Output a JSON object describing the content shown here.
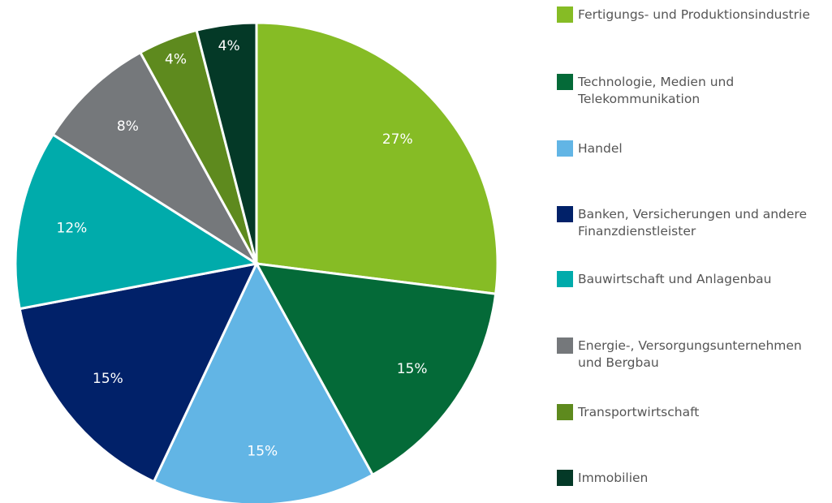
{
  "chart_data": {
    "type": "pie",
    "categories": [
      "Fertigungs- und Produktionsindustrie",
      "Technologie, Medien und Telekommunikation",
      "Handel",
      "Banken, Versicherungen und andere Finanzdienstleister",
      "Bauwirtschaft und Anlagenbau",
      "Energie-, Versorgungsunternehmen und Bergbau",
      "Transportwirtschaft",
      "Immobilien"
    ],
    "values": [
      27,
      15,
      15,
      15,
      12,
      8,
      4,
      4
    ],
    "value_labels": [
      "27%",
      "15%",
      "15%",
      "15%",
      "12%",
      "8%",
      "4%",
      "4%"
    ],
    "colors": [
      "#86bc25",
      "#046a38",
      "#62b5e5",
      "#012169",
      "#00abab",
      "#75787b",
      "#5e8a1e",
      "#043927"
    ]
  }
}
